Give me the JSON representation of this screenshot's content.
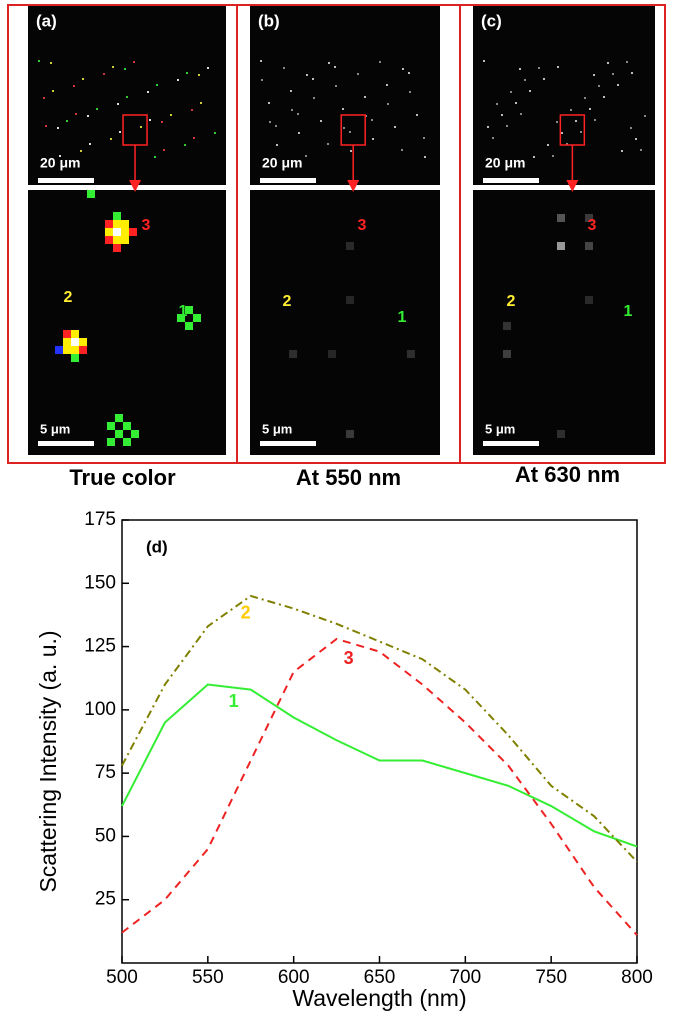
{
  "panels": [
    {
      "label": "(a)",
      "scale_top": "20 μm",
      "scale_bottom": "5 μm",
      "markers": [
        "1",
        "2",
        "3"
      ],
      "caption": "True color"
    },
    {
      "label": "(b)",
      "scale_top": "20 μm",
      "scale_bottom": "5 μm",
      "markers": [
        "1",
        "2",
        "3"
      ],
      "caption": "At 550 nm"
    },
    {
      "label": "(c)",
      "scale_top": "20 μm",
      "scale_bottom": "5 μm",
      "markers": [
        "1",
        "2",
        "3"
      ],
      "caption": "At 630 nm"
    }
  ],
  "chart_data": {
    "type": "line",
    "label": "(d)",
    "xlabel": "Wavelength (nm)",
    "ylabel": "Scattering Intensity (a. u.)",
    "x": [
      500,
      525,
      550,
      575,
      600,
      625,
      650,
      675,
      700,
      725,
      750,
      775,
      800
    ],
    "series": [
      {
        "name": "1",
        "color": "#33ee33",
        "style": "solid",
        "values": [
          62,
          95,
          110,
          108,
          97,
          88,
          80,
          80,
          75,
          70,
          62,
          52,
          46
        ]
      },
      {
        "name": "2",
        "color": "#ffcc00",
        "line_color": "#808000",
        "style": "dashdot",
        "values": [
          78,
          110,
          133,
          145,
          140,
          134,
          127,
          120,
          108,
          90,
          70,
          58,
          40
        ]
      },
      {
        "name": "3",
        "color": "#ee2222",
        "style": "dashed",
        "values": [
          12,
          25,
          45,
          80,
          115,
          128,
          123,
          110,
          95,
          78,
          55,
          30,
          11
        ]
      }
    ],
    "xlim": [
      500,
      800
    ],
    "xticks": [
      500,
      550,
      600,
      650,
      700,
      750,
      800
    ],
    "ylim": [
      0,
      175
    ],
    "yticks": [
      25,
      50,
      75,
      100,
      125,
      150,
      175
    ]
  }
}
